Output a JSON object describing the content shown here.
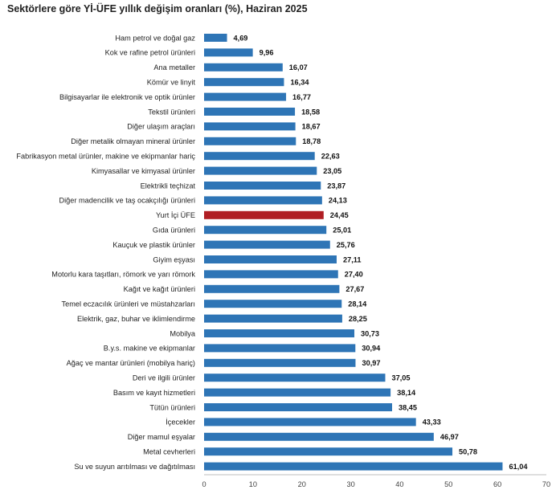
{
  "chart_data": {
    "type": "bar",
    "orientation": "horizontal",
    "title": "Sektörlere göre Yİ-ÜFE yıllık değişim oranları (%), Haziran 2025",
    "xlabel": "",
    "ylabel": "",
    "xlim": [
      0,
      70
    ],
    "xticks": [
      0,
      10,
      20,
      30,
      40,
      50,
      60,
      70
    ],
    "grid": false,
    "colors": {
      "default": "#2e75b6",
      "highlight": "#b01e23"
    },
    "highlight_category": "Yurt İçi ÜFE",
    "categories": [
      "Ham petrol ve doğal gaz",
      "Kok ve rafine petrol ürünleri",
      "Ana metaller",
      "Kömür ve linyit",
      "Bilgisayarlar ile elektronik ve optik ürünler",
      "Tekstil ürünleri",
      "Diğer ulaşım araçları",
      "Diğer metalik olmayan mineral ürünler",
      "Fabrikasyon metal ürünler, makine ve ekipmanlar hariç",
      "Kimyasallar ve kimyasal ürünler",
      "Elektrikli teçhizat",
      "Diğer madencilik ve taş ocakçılığı ürünleri",
      "Yurt İçi ÜFE",
      "Gıda ürünleri",
      "Kauçuk ve plastik ürünler",
      "Giyim eşyası",
      "Motorlu kara taşıtları, römork ve yarı römork",
      "Kağıt ve kağıt ürünleri",
      "Temel eczacılık ürünleri ve müstahzarları",
      "Elektrik, gaz, buhar ve iklimlendirme",
      "Mobilya",
      "B.y.s. makine ve ekipmanlar",
      "Ağaç ve mantar ürünleri (mobilya hariç)",
      "Deri ve ilgili ürünler",
      "Basım ve kayıt hizmetleri",
      "Tütün ürünleri",
      "İçecekler",
      "Diğer mamul eşyalar",
      "Metal cevherleri",
      "Su ve suyun arıtılması ve dağıtılması"
    ],
    "values": [
      4.69,
      9.96,
      16.07,
      16.34,
      16.77,
      18.58,
      18.67,
      18.78,
      22.63,
      23.05,
      23.87,
      24.13,
      24.45,
      25.01,
      25.76,
      27.11,
      27.4,
      27.67,
      28.14,
      28.25,
      30.73,
      30.94,
      30.97,
      37.05,
      38.14,
      38.45,
      43.33,
      46.97,
      50.78,
      61.04
    ],
    "value_labels": [
      "4,69",
      "9,96",
      "16,07",
      "16,34",
      "16,77",
      "18,58",
      "18,67",
      "18,78",
      "22,63",
      "23,05",
      "23,87",
      "24,13",
      "24,45",
      "25,01",
      "25,76",
      "27,11",
      "27,40",
      "27,67",
      "28,14",
      "28,25",
      "30,73",
      "30,94",
      "30,97",
      "37,05",
      "38,14",
      "38,45",
      "43,33",
      "46,97",
      "50,78",
      "61,04"
    ]
  }
}
